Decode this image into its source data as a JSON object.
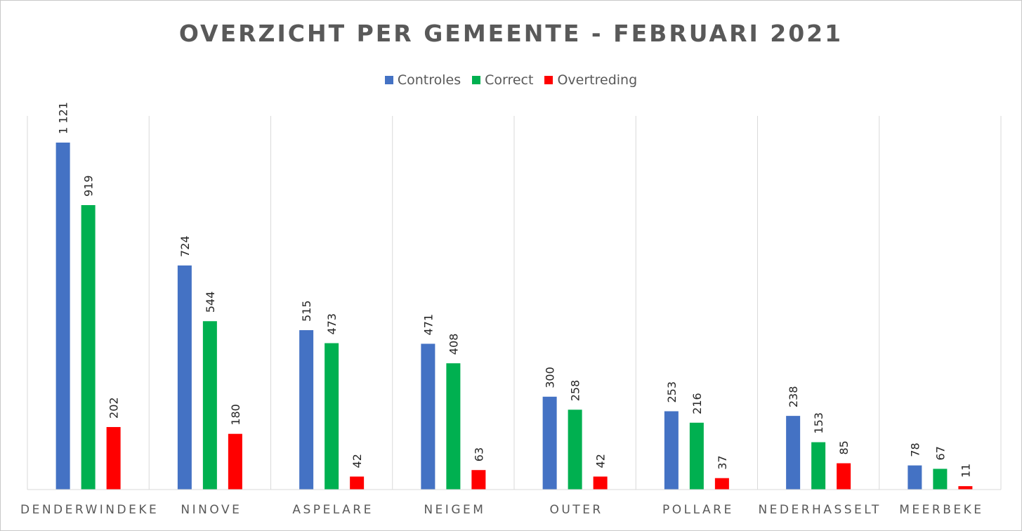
{
  "chart_data": {
    "type": "bar",
    "title": "OVERZICHT PER GEMEENTE - FEBRUARI 2021",
    "categories": [
      "DENDERWINDEKE",
      "NINOVE",
      "ASPELARE",
      "NEIGEM",
      "OUTER",
      "POLLARE",
      "NEDERHASSELT",
      "MEERBEKE"
    ],
    "series": [
      {
        "name": "Controles",
        "color": "#4472C4",
        "values": [
          1121,
          724,
          515,
          471,
          300,
          253,
          238,
          78
        ],
        "labels": [
          "1 121",
          "724",
          "515",
          "471",
          "300",
          "253",
          "238",
          "78"
        ]
      },
      {
        "name": "Correct",
        "color": "#00B050",
        "values": [
          919,
          544,
          473,
          408,
          258,
          216,
          153,
          67
        ],
        "labels": [
          "919",
          "544",
          "473",
          "408",
          "258",
          "216",
          "153",
          "67"
        ]
      },
      {
        "name": "Overtreding",
        "color": "#FF0000",
        "values": [
          202,
          180,
          42,
          63,
          42,
          37,
          85,
          11
        ],
        "labels": [
          "202",
          "180",
          "42",
          "63",
          "42",
          "37",
          "85",
          "11"
        ]
      }
    ],
    "ylim": [
      0,
      1121
    ],
    "legend_position": "top",
    "grid": false,
    "category_separators": true
  }
}
